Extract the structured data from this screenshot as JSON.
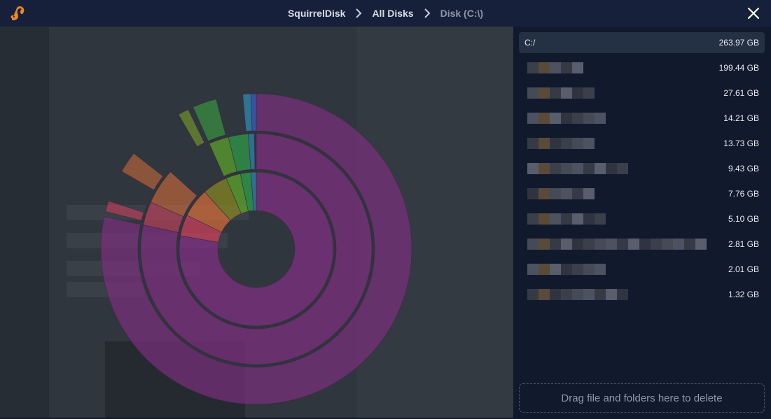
{
  "titlebar": {
    "app_name": "SquirrelDisk",
    "crumbs": [
      "All Disks",
      "Disk (C:\\)"
    ]
  },
  "icons": {
    "app": "squirrel-icon",
    "separator": "chevron-right-icon",
    "close": "close-icon"
  },
  "colors": {
    "accent_purple": "#7a3a7c",
    "sidebar_bg": "#111a2c",
    "selected_row": "#243043"
  },
  "files": [
    {
      "name": "C:/",
      "size": "263.97 GB",
      "selected": true
    },
    {
      "name": "",
      "size": "199.44 GB"
    },
    {
      "name": "",
      "size": "27.61 GB"
    },
    {
      "name": "",
      "size": "14.21 GB"
    },
    {
      "name": "",
      "size": "13.73 GB"
    },
    {
      "name": "",
      "size": "9.43 GB"
    },
    {
      "name": "",
      "size": "7.76 GB"
    },
    {
      "name": "",
      "size": "5.10 GB"
    },
    {
      "name": "",
      "size": "2.81 GB"
    },
    {
      "name": "",
      "size": "2.01 GB"
    },
    {
      "name": "",
      "size": "1.32 GB"
    }
  ],
  "dropzone": {
    "label": "Drag file and folders here to delete"
  }
}
